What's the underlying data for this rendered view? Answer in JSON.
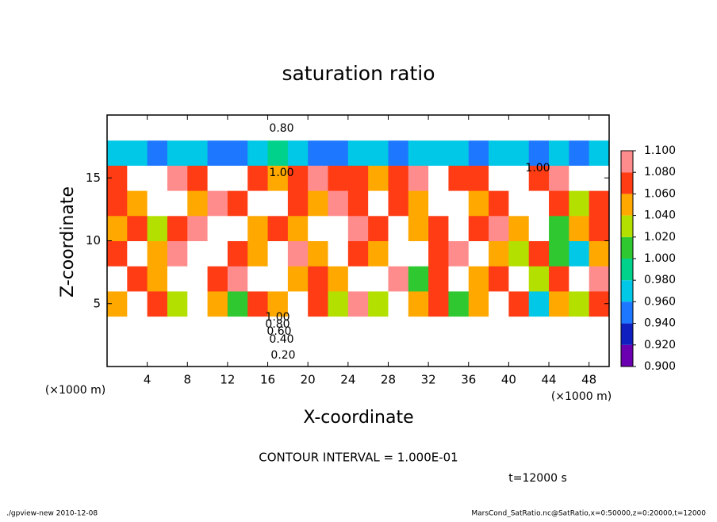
{
  "chart_data": {
    "type": "heatmap",
    "title": "saturation ratio",
    "x_label": "X-coordinate",
    "y_label": "Z-coordinate",
    "x_unit": "(×1000 m)",
    "xlim": [
      0,
      50
    ],
    "ylim": [
      0,
      20
    ],
    "xticks": [
      4,
      8,
      12,
      16,
      20,
      24,
      28,
      32,
      36,
      40,
      44,
      48
    ],
    "yticks": [
      5,
      10,
      15
    ],
    "x": [
      1,
      3,
      5,
      7,
      9,
      11,
      13,
      15,
      17,
      19,
      21,
      23,
      25,
      27,
      29,
      31,
      33,
      35,
      37,
      39,
      41,
      43,
      45,
      47,
      49
    ],
    "y": [
      1,
      3,
      5,
      7,
      9,
      11,
      13,
      15,
      17,
      19
    ],
    "z": [
      [
        0.3,
        0.3,
        0.3,
        0.3,
        0.3,
        0.3,
        0.3,
        0.3,
        0.3,
        0.3,
        0.3,
        0.3,
        0.3,
        0.3,
        0.3,
        0.3,
        0.3,
        0.3,
        0.3,
        0.3,
        0.3,
        0.3,
        0.3,
        0.3,
        0.3
      ],
      [
        0.75,
        0.75,
        0.75,
        0.75,
        0.75,
        0.75,
        0.75,
        0.75,
        0.75,
        0.75,
        0.75,
        0.75,
        0.75,
        0.75,
        0.75,
        0.75,
        0.75,
        0.75,
        0.75,
        0.75,
        0.75,
        0.75,
        0.75,
        0.75,
        0.75
      ],
      [
        1.06,
        1.12,
        1.08,
        1.04,
        1.12,
        1.06,
        1.02,
        1.08,
        1.05,
        1.12,
        1.07,
        1.04,
        1.09,
        1.03,
        1.12,
        1.06,
        1.08,
        1.02,
        1.05,
        1.12,
        1.07,
        0.98,
        1.06,
        1.04,
        1.08
      ],
      [
        1.12,
        1.08,
        1.06,
        1.12,
        1.12,
        1.07,
        1.09,
        1.12,
        1.12,
        1.06,
        1.08,
        1.05,
        1.12,
        1.12,
        1.09,
        1.02,
        1.07,
        1.12,
        1.06,
        1.08,
        1.12,
        1.04,
        1.07,
        1.12,
        1.09
      ],
      [
        1.08,
        1.12,
        1.05,
        1.09,
        1.12,
        1.12,
        1.07,
        1.06,
        1.12,
        1.09,
        1.05,
        1.12,
        1.08,
        1.06,
        1.12,
        1.12,
        1.07,
        1.09,
        1.12,
        1.06,
        1.04,
        1.08,
        1.01,
        0.97,
        1.06
      ],
      [
        1.06,
        1.08,
        1.03,
        1.07,
        1.09,
        1.12,
        1.12,
        1.06,
        1.08,
        1.05,
        1.12,
        1.12,
        1.09,
        1.07,
        1.12,
        1.06,
        1.08,
        1.12,
        1.07,
        1.09,
        1.05,
        1.12,
        1.02,
        1.06,
        1.08
      ],
      [
        1.07,
        1.05,
        1.12,
        1.12,
        1.06,
        1.09,
        1.07,
        1.12,
        1.12,
        1.08,
        1.06,
        1.09,
        1.07,
        1.12,
        1.08,
        1.06,
        1.12,
        1.12,
        1.05,
        1.07,
        1.12,
        1.12,
        1.08,
        1.04,
        1.07
      ],
      [
        1.08,
        1.12,
        1.12,
        1.09,
        1.07,
        1.12,
        1.12,
        1.08,
        1.06,
        1.07,
        1.09,
        1.08,
        1.07,
        1.06,
        1.08,
        1.09,
        1.12,
        1.08,
        1.07,
        1.12,
        1.12,
        1.08,
        1.09,
        1.12,
        1.12
      ],
      [
        0.97,
        0.98,
        0.96,
        0.97,
        0.98,
        0.95,
        0.96,
        0.97,
        0.99,
        0.97,
        0.96,
        0.95,
        0.97,
        0.98,
        0.96,
        0.97,
        0.98,
        0.97,
        0.96,
        0.98,
        0.97,
        0.96,
        0.97,
        0.95,
        0.97
      ],
      [
        0.8,
        0.8,
        0.8,
        0.8,
        0.8,
        0.8,
        0.8,
        0.8,
        0.8,
        0.8,
        0.8,
        0.8,
        0.8,
        0.8,
        0.8,
        0.8,
        0.8,
        0.8,
        0.8,
        0.8,
        0.8,
        0.8,
        0.8,
        0.8,
        0.8
      ]
    ],
    "colorbar": {
      "levels": [
        {
          "value": 0.9,
          "label": "0.900"
        },
        {
          "value": 0.92,
          "label": "0.920"
        },
        {
          "value": 0.94,
          "label": "0.940"
        },
        {
          "value": 0.96,
          "label": "0.960"
        },
        {
          "value": 0.98,
          "label": "0.980"
        },
        {
          "value": 1.0,
          "label": "1.000"
        },
        {
          "value": 1.02,
          "label": "1.020"
        },
        {
          "value": 1.04,
          "label": "1.040"
        },
        {
          "value": 1.06,
          "label": "1.060"
        },
        {
          "value": 1.08,
          "label": "1.080"
        },
        {
          "value": 1.1,
          "label": "1.100"
        }
      ],
      "colors": [
        "#6a00b0",
        "#1020c0",
        "#1e78ff",
        "#00c8e6",
        "#00d28c",
        "#30c830",
        "#b4e000",
        "#ffa800",
        "#ff3c14",
        "#ff8c8c"
      ],
      "under_color": "#ffffff",
      "over_color": "#ffffff"
    },
    "contour_labels": [
      "0.80",
      "1.00",
      "1.00",
      "1.00",
      "0.80",
      "0.60",
      "0.40",
      "0.20"
    ],
    "annotation": "CONTOUR INTERVAL = 1.000E-01",
    "time_label": "t=12000 s",
    "footer_left": "./gpview-new   2010-12-08",
    "footer_right": "MarsCond_SatRatio.nc@SatRatio,x=0:50000,z=0:20000,t=12000"
  }
}
